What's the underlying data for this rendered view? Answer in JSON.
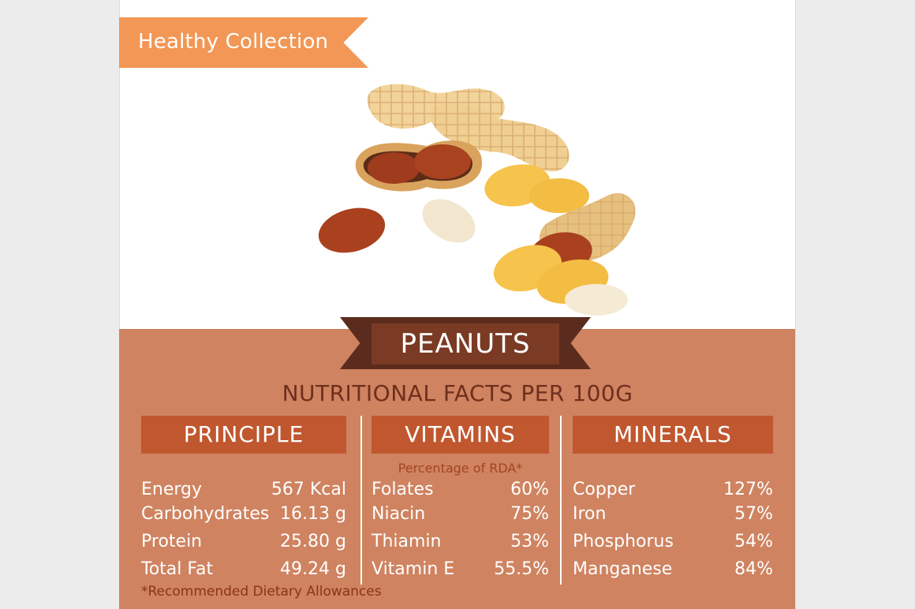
{
  "ribbon_label": "Healthy Collection",
  "title": "PEANUTS",
  "subtitle": "NUTRITIONAL FACTS PER 100G",
  "columns": [
    {
      "heading": "PRINCIPLE",
      "rows": [
        {
          "name": "Energy",
          "value": "567 Kcal"
        },
        {
          "name": "Carbohydrates",
          "value": "16.13 g"
        },
        {
          "name": "Protein",
          "value": "25.80 g"
        },
        {
          "name": "Total Fat",
          "value": "49.24 g"
        }
      ]
    },
    {
      "heading": "VITAMINS",
      "note": "Percentage of RDA*",
      "rows": [
        {
          "name": "Folates",
          "value": "60%"
        },
        {
          "name": "Niacin",
          "value": "75%"
        },
        {
          "name": "Thiamin",
          "value": "53%"
        },
        {
          "name": "Vitamin E",
          "value": "55.5%"
        }
      ]
    },
    {
      "heading": "MINERALS",
      "rows": [
        {
          "name": "Copper",
          "value": "127%"
        },
        {
          "name": "Iron",
          "value": "57%"
        },
        {
          "name": "Phosphorus",
          "value": "54%"
        },
        {
          "name": "Manganese",
          "value": "84%"
        }
      ]
    }
  ],
  "footnote": "*Recommended Dietary Allowances",
  "colors": {
    "ribbon": "#f29755",
    "panel": "#cf8360",
    "heading_bar": "#c0572f",
    "title_banner": "#7a3a24"
  },
  "illustration": "peanuts-illustration"
}
